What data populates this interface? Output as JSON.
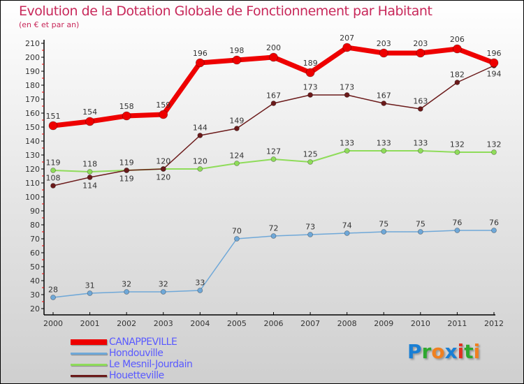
{
  "chart_data": {
    "type": "line",
    "title": "Evolution de la Dotation Globale de Fonctionnement par Habitant",
    "subtitle": "(en € et par an)",
    "xlabel": "",
    "ylabel": "",
    "ylim": [
      20,
      210
    ],
    "ytick_step": 10,
    "x": [
      "2000",
      "2001",
      "2002",
      "2003",
      "2004",
      "2005",
      "2006",
      "2007",
      "2008",
      "2009",
      "2010",
      "2011",
      "2012"
    ],
    "series": [
      {
        "name": "CANAPPEVILLE",
        "color": "#ee0000",
        "values": [
          151,
          154,
          158,
          159,
          196,
          198,
          200,
          189,
          207,
          203,
          203,
          206,
          196
        ]
      },
      {
        "name": "Hondouville",
        "color": "#6fa8d8",
        "values": [
          28,
          31,
          32,
          32,
          33,
          70,
          72,
          73,
          74,
          75,
          75,
          76,
          76
        ]
      },
      {
        "name": "Le Mesnil-Jourdain",
        "color": "#8fdc5a",
        "values": [
          119,
          118,
          119,
          120,
          120,
          124,
          127,
          125,
          133,
          133,
          133,
          132,
          132
        ]
      },
      {
        "name": "Houetteville",
        "color": "#6b1a1a",
        "values": [
          108,
          114,
          119,
          120,
          144,
          149,
          167,
          173,
          173,
          167,
          163,
          182,
          194
        ]
      }
    ],
    "legend_position": "bottom-left"
  },
  "logo": {
    "text": "Proxiti",
    "letters": [
      "P",
      "r",
      "o",
      "x",
      "i",
      "t",
      "i"
    ],
    "colors": [
      "#1a7fd4",
      "#2ea82e",
      "#f08020",
      "#1a7fd4",
      "#e03020",
      "#2ea82e",
      "#f08020"
    ]
  }
}
